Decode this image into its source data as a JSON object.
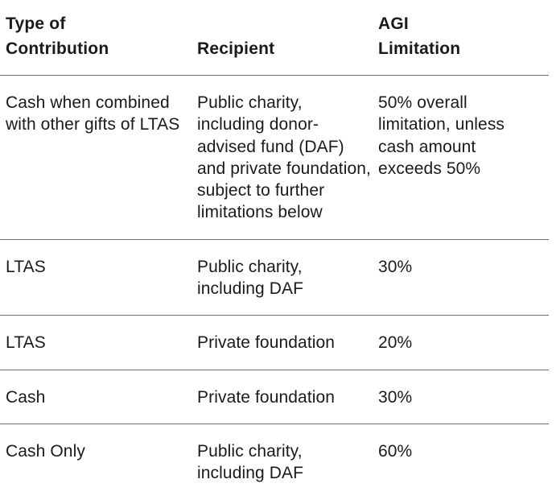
{
  "header": {
    "type_line1": "Type of",
    "type_line2": "Contribution",
    "recipient": "Recipient",
    "agi_line1": "AGI",
    "agi_line2": "Limitation"
  },
  "rows": [
    {
      "type": "Cash when combined with other gifts of LTAS",
      "recipient": "Public charity, including donor-advised fund (DAF) and private foundation, subject to further limitations below",
      "limit": "50% overall limitation, unless cash amount exceeds 50%"
    },
    {
      "type": "LTAS",
      "recipient": "Public charity, including DAF",
      "limit": "30%"
    },
    {
      "type": "LTAS",
      "recipient": "Private foundation",
      "limit": "20%"
    },
    {
      "type": "Cash",
      "recipient": "Private foundation",
      "limit": "30%"
    },
    {
      "type": "Cash Only",
      "recipient": "Public charity, including DAF",
      "limit": "60%"
    }
  ]
}
